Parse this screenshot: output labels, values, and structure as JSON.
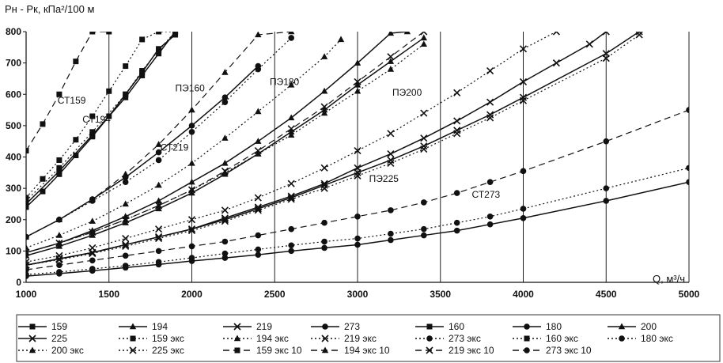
{
  "chart_data": {
    "type": "line",
    "ylabel": "Pн - Pк, кПа²/100 м",
    "xlabel": "Q, м³/ч",
    "xlim": [
      1000,
      5000
    ],
    "ylim": [
      0,
      800
    ],
    "xticks": [
      1000,
      1500,
      2000,
      2500,
      3000,
      3500,
      4000,
      4500,
      5000
    ],
    "yticks": [
      0,
      100,
      200,
      300,
      400,
      500,
      600,
      700,
      800
    ],
    "grid": "vertical",
    "legend_position": "bottom",
    "annotations": [
      "СТ159",
      "ПЭ160",
      "ПЭ180",
      "СТ194",
      "ПЭ200",
      "СТ219",
      "ПЭ225",
      "СТ273"
    ],
    "series": [
      {
        "name": "159",
        "style": "solid",
        "marker": "square",
        "x": [
          1000,
          1100,
          1200,
          1300,
          1400,
          1500,
          1600,
          1700,
          1800,
          1900
        ],
        "y": [
          240,
          290,
          345,
          405,
          465,
          530,
          600,
          670,
          745,
          790
        ]
      },
      {
        "name": "194",
        "style": "solid",
        "marker": "triangle",
        "x": [
          1000,
          1200,
          1400,
          1600,
          1800,
          2000,
          2200,
          2400,
          2600,
          2800,
          3000,
          3200,
          3300
        ],
        "y": [
          95,
          125,
          165,
          210,
          260,
          320,
          380,
          450,
          525,
          610,
          700,
          795,
          800
        ]
      },
      {
        "name": "219",
        "style": "solid",
        "marker": "x",
        "x": [
          1000,
          1200,
          1400,
          1600,
          1800,
          2000,
          2200,
          2400,
          2600,
          2800,
          3000,
          3200,
          3400,
          3600,
          3800,
          4000,
          4200,
          4400,
          4500
        ],
        "y": [
          55,
          75,
          95,
          120,
          145,
          170,
          205,
          240,
          275,
          315,
          365,
          410,
          460,
          515,
          575,
          640,
          700,
          760,
          800
        ]
      },
      {
        "name": "273",
        "style": "solid",
        "marker": "circle",
        "x": [
          1000,
          1200,
          1400,
          1600,
          1800,
          2000,
          2200,
          2400,
          2600,
          2800,
          3000,
          3200,
          3400,
          3600,
          3800,
          4000,
          4500,
          5000
        ],
        "y": [
          20,
          28,
          37,
          47,
          57,
          68,
          78,
          88,
          100,
          110,
          120,
          135,
          150,
          165,
          185,
          205,
          260,
          320
        ]
      },
      {
        "name": "160",
        "style": "solid",
        "marker": "square",
        "x": [
          1000,
          1200,
          1400,
          1600,
          1700,
          1800,
          1900
        ],
        "y": [
          250,
          355,
          470,
          590,
          660,
          730,
          800
        ]
      },
      {
        "name": "180",
        "style": "solid",
        "marker": "circle",
        "x": [
          1000,
          1200,
          1400,
          1600,
          1800,
          2000,
          2200,
          2400
        ],
        "y": [
          145,
          200,
          265,
          335,
          415,
          500,
          590,
          690
        ]
      },
      {
        "name": "200",
        "style": "solid",
        "marker": "triangle",
        "x": [
          1000,
          1200,
          1400,
          1600,
          1800,
          2000,
          2200,
          2400,
          2600,
          2800,
          3000,
          3200,
          3400
        ],
        "y": [
          85,
          115,
          150,
          190,
          235,
          285,
          345,
          410,
          480,
          550,
          630,
          705,
          780
        ]
      },
      {
        "name": "225",
        "style": "solid",
        "marker": "x",
        "x": [
          1000,
          1200,
          1400,
          1600,
          1800,
          2000,
          2200,
          2400,
          2600,
          2800,
          3000,
          3200,
          3400,
          3600,
          3800,
          4000,
          4500,
          4700
        ],
        "y": [
          55,
          75,
          95,
          120,
          145,
          170,
          200,
          235,
          270,
          310,
          350,
          390,
          435,
          485,
          535,
          590,
          730,
          800
        ]
      },
      {
        "name": "159 экс",
        "style": "dotted",
        "marker": "square",
        "x": [
          1000,
          1100,
          1200,
          1300,
          1400,
          1500,
          1600,
          1700,
          1800,
          1900
        ],
        "y": [
          270,
          330,
          390,
          455,
          530,
          610,
          690,
          775,
          800,
          800
        ]
      },
      {
        "name": "194 экс",
        "style": "dotted",
        "marker": "triangle",
        "x": [
          1000,
          1200,
          1400,
          1600,
          1800,
          2000,
          2200,
          2400,
          2600,
          2800,
          2900
        ],
        "y": [
          110,
          150,
          195,
          250,
          310,
          380,
          460,
          545,
          630,
          720,
          775
        ]
      },
      {
        "name": "219 экс",
        "style": "dotted",
        "marker": "x",
        "x": [
          1000,
          1200,
          1400,
          1600,
          1800,
          2000,
          2200,
          2400,
          2600,
          2800,
          3000,
          3200,
          3400,
          3600,
          3800,
          4000,
          4200
        ],
        "y": [
          65,
          85,
          110,
          140,
          170,
          200,
          230,
          270,
          315,
          365,
          420,
          475,
          540,
          605,
          675,
          745,
          800
        ]
      },
      {
        "name": "273 экс",
        "style": "dotted",
        "marker": "circle",
        "x": [
          1000,
          1200,
          1400,
          1600,
          1800,
          2000,
          2200,
          2400,
          2600,
          2800,
          3000,
          3200,
          3400,
          3600,
          3800,
          4000,
          4500,
          5000
        ],
        "y": [
          25,
          33,
          43,
          53,
          65,
          78,
          92,
          105,
          118,
          130,
          140,
          155,
          170,
          190,
          210,
          235,
          300,
          365
        ]
      },
      {
        "name": "160 экс",
        "style": "dotted",
        "marker": "square",
        "x": [
          1000,
          1200,
          1400,
          1600,
          1700,
          1800,
          1900
        ],
        "y": [
          260,
          365,
          480,
          600,
          675,
          740,
          800
        ]
      },
      {
        "name": "180 экс",
        "style": "dotted",
        "marker": "circle",
        "x": [
          1000,
          1200,
          1400,
          1600,
          1800,
          2000,
          2200,
          2400,
          2600
        ],
        "y": [
          145,
          200,
          260,
          320,
          390,
          480,
          575,
          680,
          780
        ]
      },
      {
        "name": "200 экс",
        "style": "dotted",
        "marker": "triangle",
        "x": [
          1000,
          1200,
          1400,
          1600,
          1800,
          2000,
          2200,
          2400,
          2600,
          2800,
          3000,
          3200,
          3400
        ],
        "y": [
          95,
          125,
          160,
          200,
          245,
          295,
          350,
          410,
          470,
          540,
          610,
          680,
          760
        ]
      },
      {
        "name": "225 экс",
        "style": "dotted",
        "marker": "x",
        "x": [
          1000,
          1200,
          1400,
          1600,
          1800,
          2000,
          2200,
          2400,
          2600,
          2800,
          3000,
          3200,
          3400,
          3600,
          3800,
          4000,
          4500,
          4700
        ],
        "y": [
          55,
          72,
          92,
          115,
          140,
          165,
          195,
          230,
          265,
          300,
          340,
          380,
          425,
          475,
          525,
          580,
          715,
          790
        ]
      },
      {
        "name": "159 экс 10",
        "style": "dashed",
        "marker": "square",
        "x": [
          1000,
          1100,
          1200,
          1300,
          1400,
          1500
        ],
        "y": [
          420,
          505,
          600,
          705,
          800,
          800
        ]
      },
      {
        "name": "194 экс 10",
        "style": "dashed",
        "marker": "triangle",
        "x": [
          1000,
          1200,
          1400,
          1600,
          1800,
          2000,
          2200,
          2400,
          2600
        ],
        "y": [
          145,
          200,
          265,
          345,
          440,
          550,
          670,
          790,
          800
        ]
      },
      {
        "name": "219 экс 10",
        "style": "dashed",
        "marker": "x",
        "x": [
          1000,
          1200,
          1400,
          1600,
          1800,
          2000,
          2200,
          2400,
          2600,
          2800,
          3000,
          3200,
          3400
        ],
        "y": [
          95,
          125,
          160,
          200,
          245,
          295,
          355,
          420,
          490,
          560,
          640,
          720,
          800
        ]
      },
      {
        "name": "273 экс 10",
        "style": "dashed",
        "marker": "circle",
        "x": [
          1000,
          1200,
          1400,
          1600,
          1800,
          2000,
          2200,
          2400,
          2600,
          2800,
          3000,
          3200,
          3400,
          3600,
          3800,
          4000,
          4500,
          5000
        ],
        "y": [
          40,
          55,
          70,
          85,
          100,
          115,
          130,
          150,
          170,
          190,
          210,
          230,
          255,
          285,
          320,
          355,
          450,
          550
        ]
      }
    ]
  }
}
